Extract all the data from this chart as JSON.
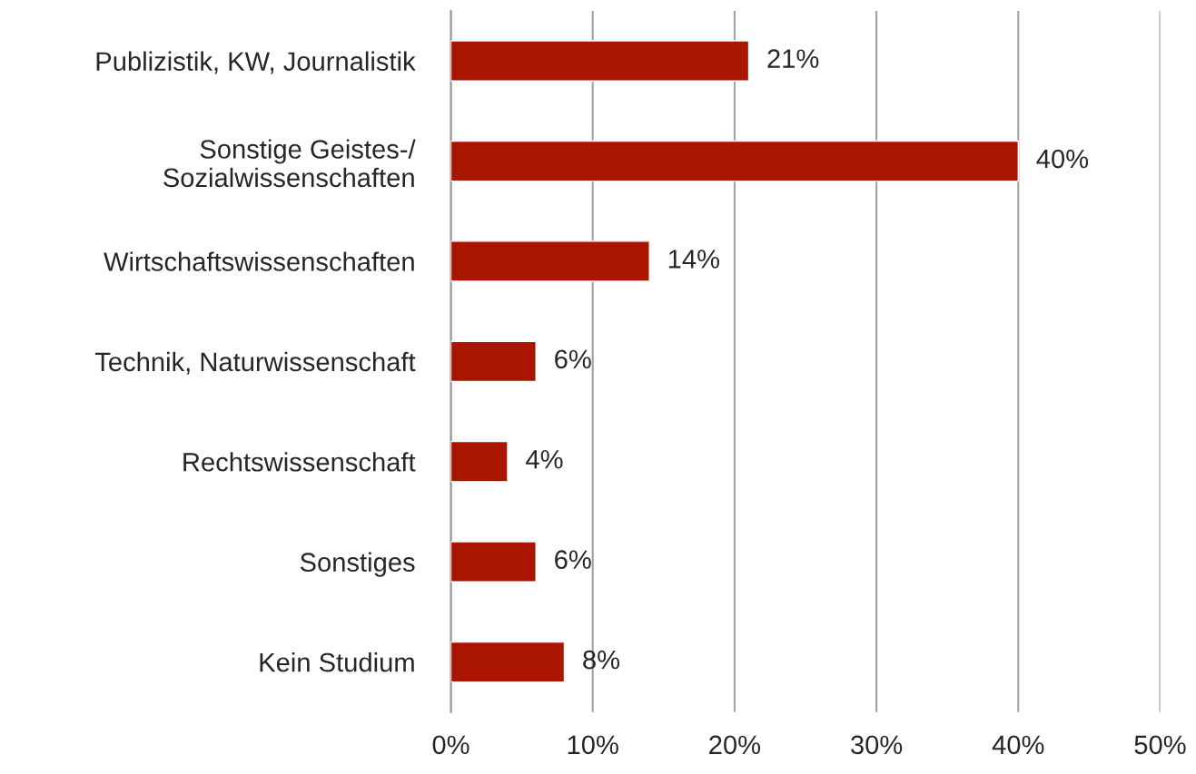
{
  "chart_data": {
    "type": "bar",
    "orientation": "horizontal",
    "categories": [
      "Publizistik, KW, Journalistik",
      "Sonstige Geistes-/\nSozialwissenschaften",
      "Wirtschaftswissenschaften",
      "Technik, Naturwissenschaft",
      "Rechtswissenschaft",
      "Sonstiges",
      "Kein Studium"
    ],
    "values": [
      21,
      40,
      14,
      6,
      4,
      6,
      8
    ],
    "value_labels": [
      "21%",
      "40%",
      "14%",
      "6%",
      "4%",
      "6%",
      "8%"
    ],
    "color": "#aa1500",
    "xlim": [
      0,
      50
    ],
    "xticks": [
      {
        "value": 0,
        "label": "0%"
      },
      {
        "value": 10,
        "label": "10%"
      },
      {
        "value": 20,
        "label": "20%"
      },
      {
        "value": 30,
        "label": "30%"
      },
      {
        "value": 40,
        "label": "40%"
      },
      {
        "value": 50,
        "label": "50%"
      }
    ],
    "grid": "x",
    "legend": false
  }
}
